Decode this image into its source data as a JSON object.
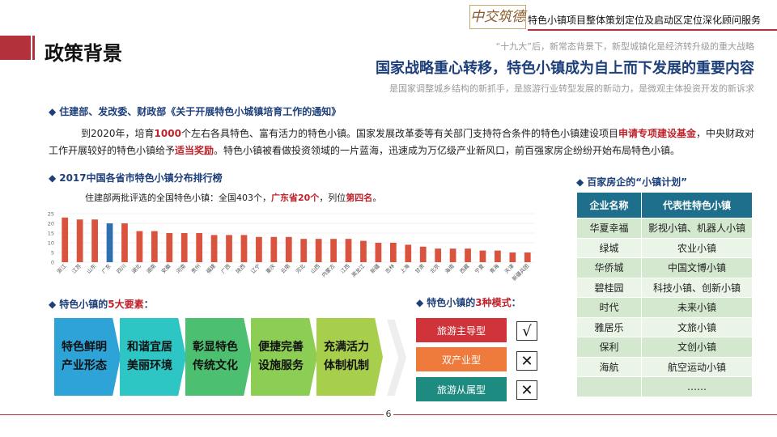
{
  "header": {
    "logo_text": "中交筑德",
    "title": "特色小镇项目整体策划定位及启动区定位深化顾问服务"
  },
  "slide_title": "政策背景",
  "subheading_top": "“十九大”后，新常态背景下，新型城镇化是经济转升级的重大战略",
  "headline": "国家战略重心转移，特色小镇成为自上而下发展的重要内容",
  "subheading_bottom": "是国家调整城乡结构的新抓手，是旅游行业转型发展的新动力，是微观主体投资开发的新诉求",
  "section1": {
    "title": "住建部、发改委、财政部《关于开展特色小城镇培育工作的通知》"
  },
  "paragraph": {
    "p1": "到2020年，培育",
    "hl1": "1000",
    "p2": "个左右各具特色、富有活力的特色小镇。国家发展改革委等有关部门支持符合条件的特色小镇建设项目",
    "hl2": "申请专项建设基金",
    "p3": "，中央财政对工作开展较好的特色小镇给予",
    "hl3": "适当奖励",
    "p4": "。特色小镇被看做投资领域的一片蓝海，迅速成为万亿级产业新风口，前百强家房企纷纷开始布局特色小镇。"
  },
  "section2": {
    "title": "2017中国各省市特色小镇分布排行榜"
  },
  "chart_note": {
    "p1": "住建部两批评选的全国特色小镇：全国403个，",
    "hl1": "广东省20个",
    "p2": "，列位",
    "hl2": "第四名",
    "p3": "。"
  },
  "chart_data": {
    "type": "bar",
    "categories": [
      "浙江",
      "江苏",
      "山东",
      "广东",
      "四川",
      "湖北",
      "湖南",
      "安徽",
      "河南",
      "贵州",
      "福建",
      "广西",
      "陕西",
      "辽宁",
      "重庆",
      "云南",
      "河北",
      "山西",
      "内蒙古",
      "江西",
      "黑龙江",
      "新疆",
      "吉林",
      "上海",
      "甘肃",
      "北京",
      "海南",
      "西藏",
      "宁夏",
      "青海",
      "天津",
      "新疆兵团"
    ],
    "values": [
      23,
      22,
      22,
      20,
      20,
      16,
      16,
      15,
      15,
      15,
      14,
      14,
      14,
      13,
      13,
      13,
      12,
      12,
      12,
      12,
      11,
      10,
      10,
      9,
      8,
      7,
      7,
      7,
      6,
      6,
      5,
      5
    ],
    "highlight_index": 3,
    "y_ticks": [
      "0",
      "5",
      "10",
      "15",
      "20",
      "25"
    ],
    "ylim": [
      0,
      25
    ],
    "grid": true,
    "colors": {
      "bar": "#d9533f",
      "highlight": "#2e6fb0"
    }
  },
  "section3": {
    "title_prefix": "特色小镇的",
    "title_red": "5大要素",
    "title_suffix": "："
  },
  "elements": [
    {
      "line1": "特色鲜明",
      "line2": "产业形态",
      "color": "#2da3d8"
    },
    {
      "line1": "和谐宜居",
      "line2": "美丽环境",
      "color": "#2ec5c5"
    },
    {
      "line1": "彰显特色",
      "line2": "传统文化",
      "color": "#4cc070"
    },
    {
      "line1": "便捷完善",
      "line2": "设施服务",
      "color": "#8ccd54"
    },
    {
      "line1": "充满活力",
      "line2": "体制机制",
      "color": "#a8cf4c"
    }
  ],
  "section4": {
    "title_prefix": "特色小镇的",
    "title_red": "3种模式",
    "title_suffix": "："
  },
  "modes": [
    {
      "label": "旅游主导型",
      "color": "#d0343a",
      "mark": "√"
    },
    {
      "label": "双产业型",
      "color": "#ee7a3c",
      "mark": "✕"
    },
    {
      "label": "旅游从属型",
      "color": "#1e8b80",
      "mark": "✕"
    }
  ],
  "section5": {
    "title": "百家房企的“小镇计划”"
  },
  "table": {
    "headers": [
      "企业名称",
      "代表性特色小镇"
    ],
    "rows": [
      [
        "华夏幸福",
        "影视小镇、机器人小镇"
      ],
      [
        "绿城",
        "农业小镇"
      ],
      [
        "华侨城",
        "中国文博小镇"
      ],
      [
        "碧桂园",
        "科技小镇、创新小镇"
      ],
      [
        "时代",
        "未来小镇"
      ],
      [
        "雅居乐",
        "文旅小镇"
      ],
      [
        "保利",
        "文创小镇"
      ],
      [
        "海航",
        "航空运动小镇"
      ],
      [
        "",
        "……"
      ]
    ]
  },
  "page_number": "6"
}
